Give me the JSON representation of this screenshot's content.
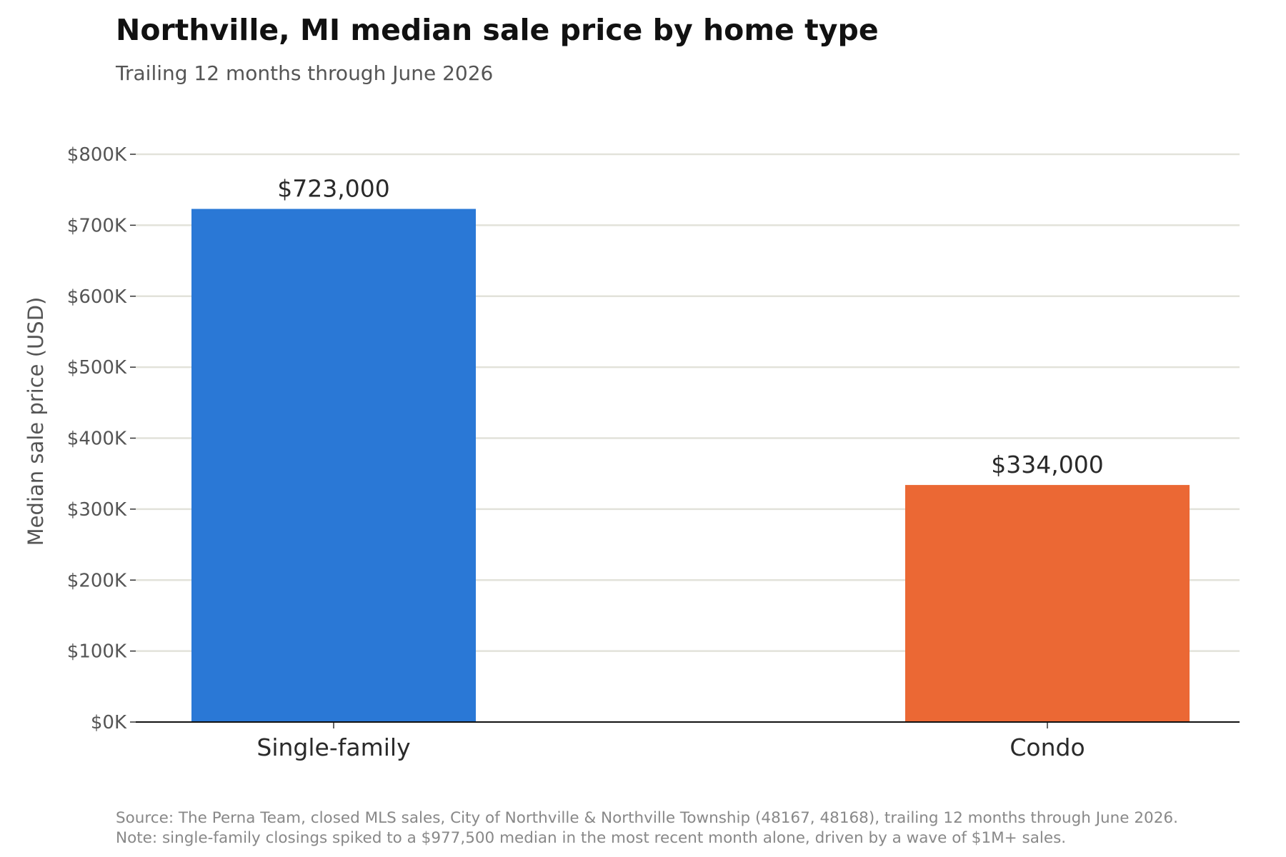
{
  "header": {
    "title": "Northville, MI median sale price by home type",
    "subtitle": "Trailing 12 months through June 2026"
  },
  "footer": {
    "source": "Source: The Perna Team, closed MLS sales, City of Northville & Northville Township (48167, 48168), trailing 12 months through June 2026.",
    "note": "Note: single-family closings spiked to a $977,500 median in the most recent month alone, driven by a wave of $1M+ sales."
  },
  "chart_data": {
    "type": "bar",
    "title": "Northville, MI median sale price by home type",
    "subtitle": "Trailing 12 months through June 2026",
    "xlabel": "",
    "ylabel": "Median sale price (USD)",
    "categories": [
      "Single-family",
      "Condo"
    ],
    "values": [
      723000,
      334000
    ],
    "data_labels": [
      "$723,000",
      "$334,000"
    ],
    "colors": [
      "#2a78d6",
      "#eb6834"
    ],
    "ylim": [
      0,
      800000
    ],
    "yticks": [
      0,
      100000,
      200000,
      300000,
      400000,
      500000,
      600000,
      700000,
      800000
    ],
    "ytick_labels": [
      "$0K",
      "$100K",
      "$200K",
      "$300K",
      "$400K",
      "$500K",
      "$600K",
      "$700K",
      "$800K"
    ],
    "grid": "horizontal",
    "gridline_color": "#e2e2da",
    "legend": "none"
  }
}
